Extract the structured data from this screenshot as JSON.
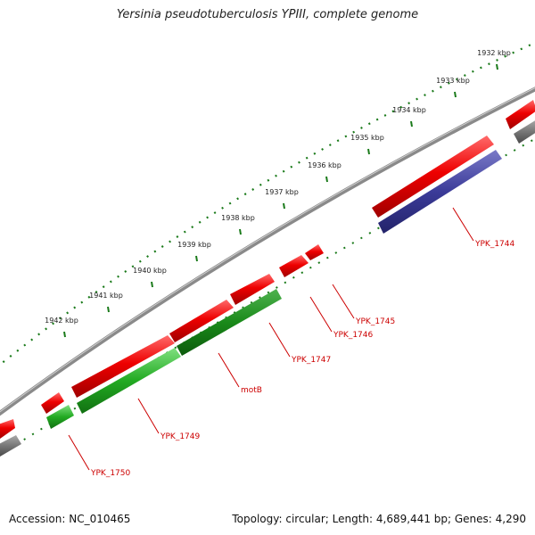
{
  "title": "Yersinia pseudotuberculosis YPIII, complete genome",
  "footer": {
    "accession": "Accession: NC_010465",
    "summary": "Topology: circular; Length: 4,689,441 bp; Genes: 4,290"
  },
  "colors": {
    "backbone": "#7d7d7d",
    "forward": "#ee0000",
    "cds_green": "#22aa22",
    "cds_dark_green": "#1a8a1a",
    "cds_blue": "#3b3b99",
    "cds_grey": "#777777",
    "ticks": "#1a7a1a",
    "label": "#cc0000"
  },
  "ruler": [
    "1932 kbp",
    "1933 kbp",
    "1934 kbp",
    "1935 kbp",
    "1936 kbp",
    "1937 kbp",
    "1938 kbp",
    "1939 kbp",
    "1940 kbp",
    "1941 kbp",
    "1942 kbp"
  ],
  "genes": [
    {
      "name": "YPK_1744"
    },
    {
      "name": "YPK_1745"
    },
    {
      "name": "YPK_1746"
    },
    {
      "name": "YPK_1747"
    },
    {
      "name": "motB"
    },
    {
      "name": "YPK_1749"
    },
    {
      "name": "YPK_1750"
    }
  ]
}
